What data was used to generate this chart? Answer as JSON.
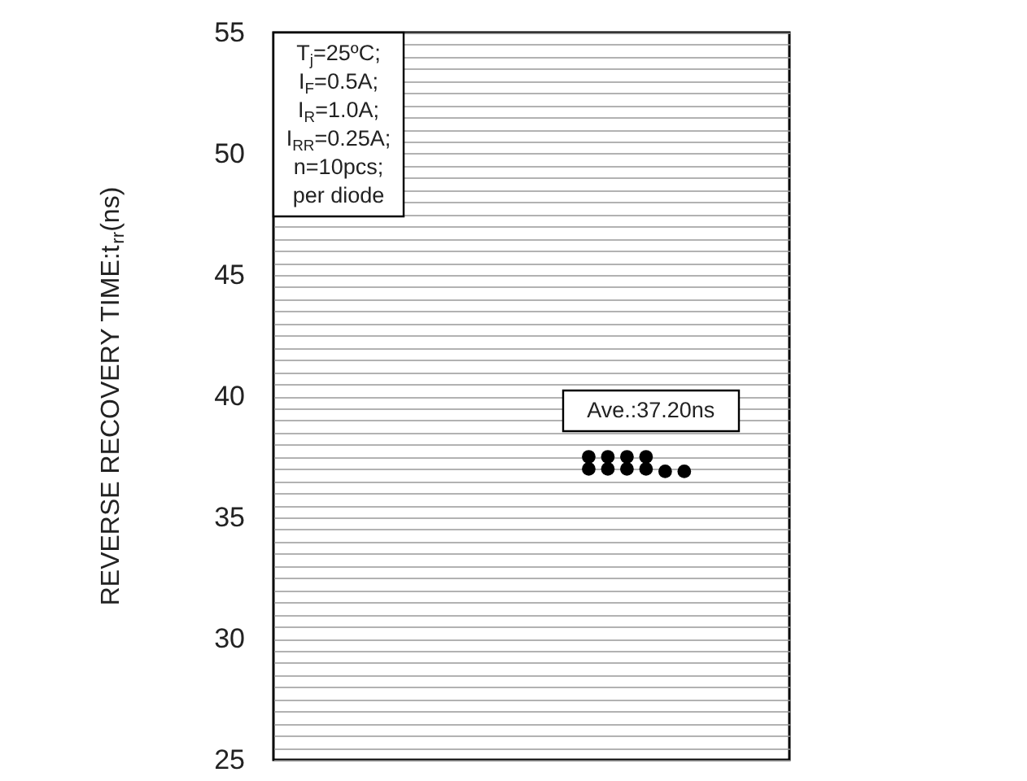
{
  "chart_data": {
    "type": "scatter",
    "ylabel": "REVERSE RECOVERY TIME:t$_{rr}$(ns)",
    "categories": [
      null,
      null,
      null,
      null,
      null,
      null,
      null,
      null,
      null,
      null,
      null,
      null,
      null,
      null,
      null,
      null,
      null,
      null,
      null,
      null,
      null,
      null,
      null,
      null,
      null,
      null,
      null
    ],
    "series": [
      {
        "color": "#000000",
        "values": [
          null,
          null,
          null,
          null,
          null,
          null,
          null,
          null,
          null,
          null,
          null,
          null,
          null,
          null,
          null,
          null,
          37.0,
          37.0,
          37.0,
          37.0,
          36.9,
          36.9,
          null,
          null,
          null,
          null,
          null
        ]
      },
      {
        "color": "#000000",
        "values": [
          null,
          null,
          null,
          null,
          null,
          null,
          null,
          null,
          null,
          null,
          null,
          null,
          null,
          null,
          null,
          null,
          37.5,
          37.5,
          37.5,
          37.5,
          null,
          null,
          null,
          null,
          null,
          null,
          null
        ]
      }
    ],
    "ylim": [
      25,
      55
    ],
    "yticks": [
      25,
      {
        "value": 25.5,
        "label": null
      },
      {
        "value": 26,
        "label": null
      },
      {
        "value": 26.5,
        "label": null
      },
      {
        "value": 27,
        "label": null
      },
      {
        "value": 27.5,
        "label": null
      },
      {
        "value": 28,
        "label": null
      },
      {
        "value": 28.5,
        "label": null
      },
      {
        "value": 29,
        "label": null
      },
      {
        "value": 29.5,
        "label": null
      },
      30,
      {
        "value": 30.5,
        "label": null
      },
      {
        "value": 31,
        "label": null
      },
      {
        "value": 31.5,
        "label": null
      },
      {
        "value": 32,
        "label": null
      },
      {
        "value": 32.5,
        "label": null
      },
      {
        "value": 33,
        "label": null
      },
      {
        "value": 33.5,
        "label": null
      },
      {
        "value": 34,
        "label": null
      },
      {
        "value": 34.5,
        "label": null
      },
      35,
      {
        "value": 35.5,
        "label": null
      },
      {
        "value": 36,
        "label": null
      },
      {
        "value": 36.5,
        "label": null
      },
      {
        "value": 37,
        "label": null
      },
      {
        "value": 37.5,
        "label": null
      },
      {
        "value": 38,
        "label": null
      },
      {
        "value": 38.5,
        "label": null
      },
      {
        "value": 39,
        "label": null
      },
      {
        "value": 39.5,
        "label": null
      },
      40,
      {
        "value": 40.5,
        "label": null
      },
      {
        "value": 41,
        "label": null
      },
      {
        "value": 41.5,
        "label": null
      },
      {
        "value": 42,
        "label": null
      },
      {
        "value": 42.5,
        "label": null
      },
      {
        "value": 43,
        "label": null
      },
      {
        "value": 43.5,
        "label": null
      },
      {
        "value": 44,
        "label": null
      },
      {
        "value": 44.5,
        "label": null
      },
      45,
      {
        "value": 45.5,
        "label": null
      },
      {
        "value": 46,
        "label": null
      },
      {
        "value": 46.5,
        "label": null
      },
      {
        "value": 47,
        "label": null
      },
      {
        "value": 47.5,
        "label": null
      },
      {
        "value": 48,
        "label": null
      },
      {
        "value": 48.5,
        "label": null
      },
      {
        "value": 49,
        "label": null
      },
      {
        "value": 49.5,
        "label": null
      },
      50,
      {
        "value": 50.5,
        "label": null
      },
      {
        "value": 51,
        "label": null
      },
      {
        "value": 51.5,
        "label": null
      },
      {
        "value": 52,
        "label": null
      },
      {
        "value": 52.5,
        "label": null
      },
      {
        "value": 53,
        "label": null
      },
      {
        "value": 53.5,
        "label": null
      },
      {
        "value": 54,
        "label": null
      },
      {
        "value": 54.5,
        "label": null
      },
      55
    ],
    "grid": "y",
    "tick_labels": "y",
    "marker": "circle",
    "annotations": [
      "T$_{j}$=25ºC;\nI$_{F}$=0.5A;\nI$_{R}$=1.0A;\nI$_{RR}$=0.25A;\nn=10pcs;\nper diode",
      "Ave.:37.20ns"
    ]
  }
}
